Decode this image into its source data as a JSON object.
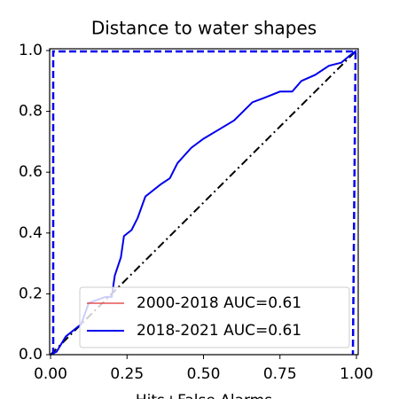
{
  "chart_data": {
    "type": "line",
    "title": "Distance to water shapes",
    "xlabel": "Hits+False Alarms",
    "x": [
      0,
      0.02,
      0.05,
      0.1,
      0.125,
      0.18,
      0.2,
      0.21,
      0.23,
      0.24,
      0.265,
      0.285,
      0.31,
      0.36,
      0.39,
      0.415,
      0.46,
      0.5,
      0.55,
      0.6,
      0.66,
      0.7,
      0.75,
      0.79,
      0.82,
      0.865,
      0.91,
      0.95,
      0.98,
      1
    ],
    "series": [
      {
        "name": "2000-2018 AUC=0.61",
        "color": "#e03030",
        "values": [
          0,
          0.01,
          0.06,
          0.1,
          0.17,
          0.19,
          0.19,
          0.26,
          0.32,
          0.39,
          0.41,
          0.45,
          0.52,
          0.56,
          0.58,
          0.63,
          0.68,
          0.71,
          0.74,
          0.77,
          0.83,
          0.845,
          0.865,
          0.865,
          0.9,
          0.92,
          0.95,
          0.96,
          0.985,
          1
        ]
      },
      {
        "name": "2018-2021 AUC=0.61",
        "color": "#0000ee",
        "values": [
          0,
          0.01,
          0.06,
          0.1,
          0.17,
          0.19,
          0.19,
          0.26,
          0.32,
          0.39,
          0.41,
          0.45,
          0.52,
          0.56,
          0.58,
          0.63,
          0.68,
          0.71,
          0.74,
          0.77,
          0.83,
          0.845,
          0.865,
          0.865,
          0.9,
          0.92,
          0.95,
          0.96,
          0.985,
          1
        ]
      }
    ],
    "xlim": [
      0,
      1
    ],
    "ylim": [
      0,
      1
    ],
    "xticks": [
      {
        "value": 0,
        "label": "0.00"
      },
      {
        "value": 0.25,
        "label": "0.25"
      },
      {
        "value": 0.5,
        "label": "0.50"
      },
      {
        "value": 0.75,
        "label": "0.75"
      },
      {
        "value": 1,
        "label": "1.00"
      }
    ],
    "yticks": [
      {
        "value": 0,
        "label": "0.0"
      },
      {
        "value": 0.2,
        "label": "0.2"
      },
      {
        "value": 0.4,
        "label": "0.4"
      },
      {
        "value": 0.6,
        "label": "0.6"
      },
      {
        "value": 0.8,
        "label": "0.8"
      },
      {
        "value": 1,
        "label": "1.0"
      }
    ],
    "legend": "lower right",
    "grid": false
  }
}
